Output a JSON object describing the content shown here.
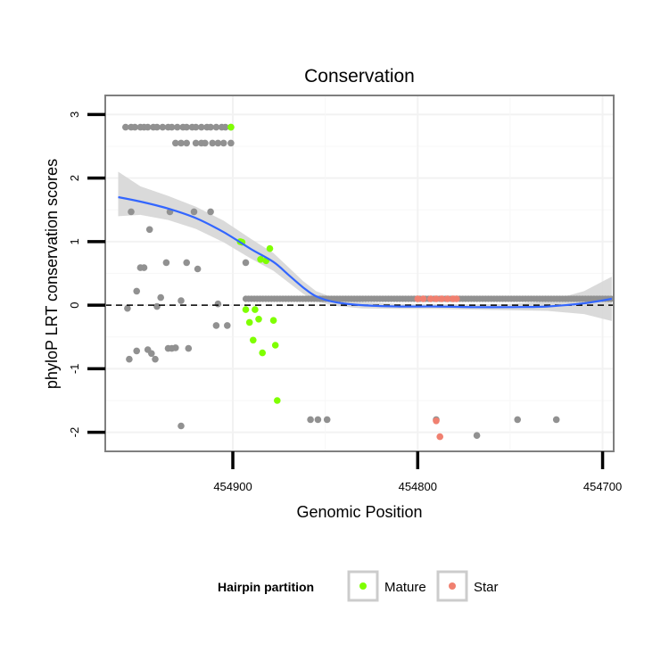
{
  "chart_data": {
    "type": "scatter",
    "title": "Conservation",
    "xlabel": "Genomic Position",
    "ylabel": "phyloP LRT conservation scores",
    "x_reversed": true,
    "xlim": [
      454969,
      454694
    ],
    "ylim": [
      -2.3,
      3.3
    ],
    "x_ticks": [
      454900,
      454800,
      454700
    ],
    "x_tick_labels": [
      "454900",
      "454800",
      "454700"
    ],
    "y_ticks": [
      -2,
      -1,
      0,
      1,
      2,
      3
    ],
    "y_tick_labels": [
      "-2",
      "-1",
      "0",
      "1",
      "2",
      "3"
    ],
    "reference_line": {
      "y": 0,
      "style": "dashed"
    },
    "legend": {
      "title": "Hairpin partition",
      "position": "bottom",
      "entries": [
        {
          "label": "Mature",
          "color": "#7fff00"
        },
        {
          "label": "Star",
          "color": "#f08070"
        }
      ]
    },
    "colors": {
      "other": "#919191",
      "mature": "#7fff00",
      "star": "#f08070",
      "smooth_line": "#3366ff",
      "smooth_band": "#d6d6d6"
    },
    "series": [
      {
        "name": "Other",
        "x": [
          454958,
          454955,
          454953,
          454950,
          454948,
          454946,
          454943,
          454941,
          454938,
          454935,
          454933,
          454930,
          454927,
          454925,
          454922,
          454920,
          454917,
          454914,
          454912,
          454909,
          454906,
          454904,
          454901,
          454931,
          454928,
          454925,
          454920,
          454917,
          454915,
          454911,
          454908,
          454905,
          454901,
          454955,
          454952,
          454948,
          454945,
          454941,
          454939,
          454936,
          454934,
          454931,
          454928,
          454925,
          454921,
          454919,
          454912,
          454908,
          454903,
          454893,
          454957,
          454956,
          454952,
          454950,
          454946,
          454944,
          454942,
          454935,
          454933,
          454928,
          454924,
          454909,
          454858,
          454854,
          454849,
          454790,
          454768,
          454746,
          454725
        ],
        "y": [
          2.8,
          2.8,
          2.8,
          2.8,
          2.8,
          2.8,
          2.8,
          2.8,
          2.8,
          2.8,
          2.8,
          2.8,
          2.8,
          2.8,
          2.8,
          2.8,
          2.8,
          2.8,
          2.8,
          2.8,
          2.8,
          2.8,
          2.8,
          2.55,
          2.55,
          2.55,
          2.55,
          2.55,
          2.55,
          2.55,
          2.55,
          2.55,
          2.55,
          1.47,
          0.22,
          0.59,
          1.19,
          -0.02,
          0.12,
          0.67,
          1.47,
          -0.67,
          0.07,
          0.67,
          1.47,
          0.57,
          1.47,
          0.02,
          -0.32,
          0.67,
          -0.05,
          -0.85,
          -0.72,
          0.59,
          -0.7,
          -0.76,
          -0.85,
          -0.68,
          -0.68,
          -1.9,
          -0.68,
          -0.32,
          -1.8,
          -1.8,
          -1.8,
          -1.8,
          -2.05,
          -1.8,
          -1.8
        ],
        "band_x_range": [
          454893,
          454695
        ],
        "band_y": 0.1
      },
      {
        "name": "Mature",
        "x": [
          454901,
          454896,
          454895,
          454893,
          454891,
          454889,
          454888,
          454886,
          454884,
          454880,
          454878,
          454877,
          454876,
          454885,
          454882
        ],
        "y": [
          2.8,
          1.0,
          0.99,
          -0.07,
          -0.27,
          -0.55,
          -0.07,
          -0.22,
          -0.75,
          0.89,
          -0.24,
          -0.63,
          -1.5,
          0.72,
          0.7
        ]
      },
      {
        "name": "Star",
        "x": [
          454800,
          454797,
          454793,
          454790,
          454787,
          454784,
          454781,
          454779,
          454790,
          454788
        ],
        "y": [
          0.1,
          0.1,
          0.1,
          0.1,
          0.1,
          0.1,
          0.1,
          0.1,
          -1.82,
          -2.07
        ]
      }
    ],
    "smooth": {
      "method": "loess",
      "x": [
        454962,
        454950,
        454935,
        454920,
        454905,
        454890,
        454878,
        454870,
        454862,
        454855,
        454845,
        454830,
        454810,
        454790,
        454770,
        454750,
        454730,
        454710,
        454695
      ],
      "y": [
        1.7,
        1.63,
        1.52,
        1.37,
        1.15,
        0.88,
        0.68,
        0.48,
        0.28,
        0.14,
        0.05,
        0.0,
        -0.02,
        -0.02,
        -0.03,
        -0.03,
        -0.02,
        0.03,
        0.1
      ],
      "lower": [
        1.4,
        1.42,
        1.34,
        1.2,
        0.99,
        0.73,
        0.54,
        0.36,
        0.18,
        0.06,
        -0.01,
        -0.05,
        -0.06,
        -0.06,
        -0.07,
        -0.08,
        -0.09,
        -0.14,
        -0.25
      ],
      "upper": [
        2.1,
        1.87,
        1.72,
        1.55,
        1.33,
        1.04,
        0.82,
        0.6,
        0.38,
        0.22,
        0.11,
        0.05,
        0.02,
        0.02,
        0.01,
        0.02,
        0.06,
        0.22,
        0.45
      ]
    }
  }
}
